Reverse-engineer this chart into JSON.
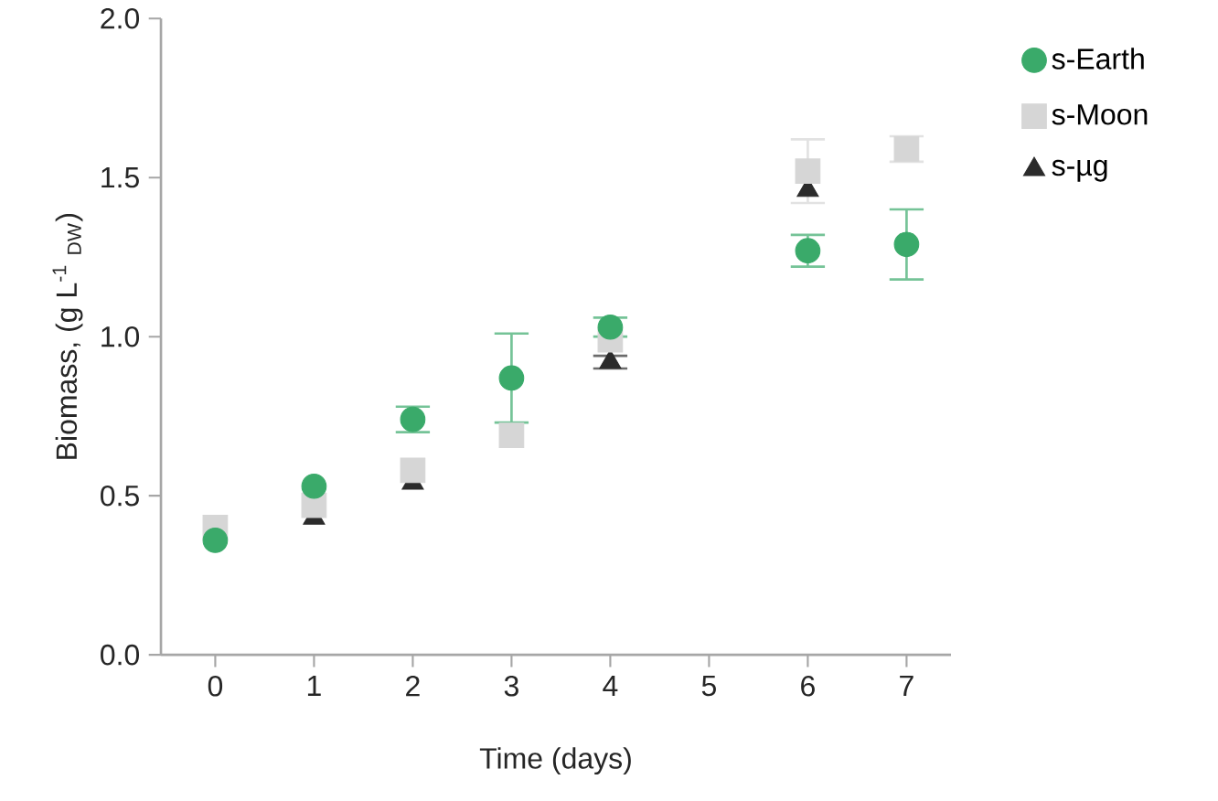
{
  "chart_data": {
    "type": "scatter",
    "xlabel": "Time (days)",
    "ylabel": "Biomass, (g L$^{-1}$ $_{DW}$)",
    "x": [
      0,
      1,
      2,
      3,
      4,
      6,
      7
    ],
    "xlim": [
      -0.55,
      7.45
    ],
    "xticks": [
      0,
      1,
      2,
      3,
      4,
      5,
      6,
      7
    ],
    "ylim": [
      0,
      2
    ],
    "yticks": [
      {
        "value": 0,
        "label": "0.0"
      },
      {
        "value": 0.5,
        "label": "0.5"
      },
      {
        "value": 1,
        "label": "1.0"
      },
      {
        "value": 1.5,
        "label": "1.5"
      },
      {
        "value": 2,
        "label": "2.0"
      }
    ],
    "legend": "right",
    "grid": false,
    "series": [
      {
        "name": "s-Earth",
        "color": "#3aaa6a",
        "marker": "circle",
        "values": [
          0.36,
          0.53,
          0.74,
          0.87,
          1.03,
          1.27,
          1.29
        ],
        "errors": [
          null,
          null,
          0.04,
          0.14,
          0.03,
          0.05,
          0.11
        ]
      },
      {
        "name": "s-Moon",
        "color": "#d6d6d6",
        "marker": "square",
        "values": [
          0.4,
          0.47,
          0.58,
          0.69,
          0.99,
          1.52,
          1.59
        ],
        "errors": [
          null,
          null,
          null,
          null,
          null,
          0.1,
          0.04
        ]
      },
      {
        "name": "s-µg",
        "color": "#2b2b2b",
        "marker": "triangle",
        "values": [
          null,
          0.43,
          0.54,
          null,
          0.92,
          1.46,
          null
        ],
        "errors": [
          null,
          null,
          null,
          null,
          0.02,
          null,
          null
        ]
      }
    ]
  }
}
